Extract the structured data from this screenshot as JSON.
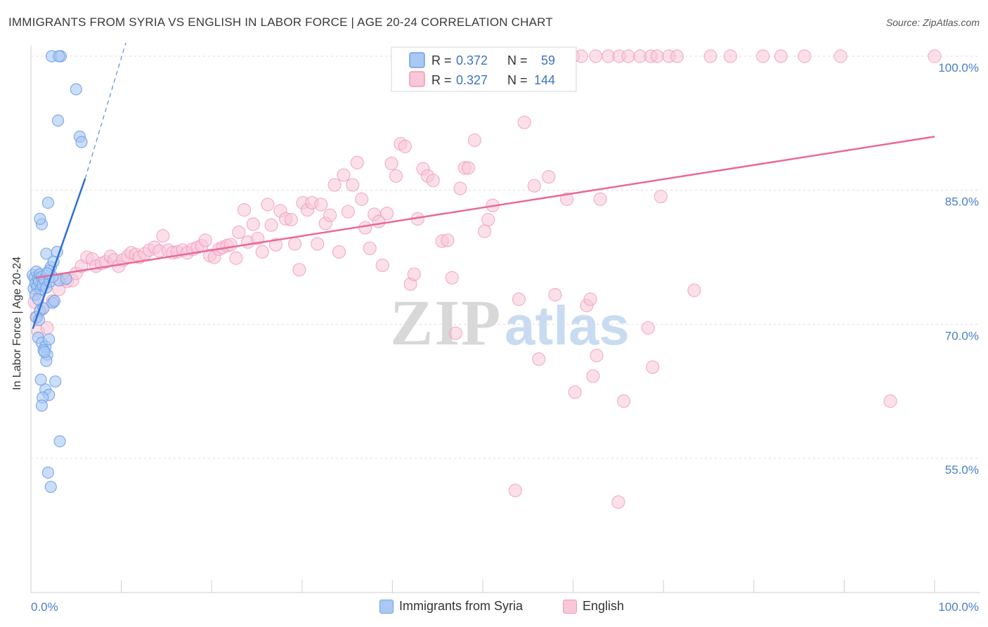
{
  "header": {
    "title": "IMMIGRANTS FROM SYRIA VS ENGLISH IN LABOR FORCE | AGE 20-24 CORRELATION CHART",
    "source": "Source: ZipAtlas.com"
  },
  "watermark": {
    "zip": "ZIP",
    "atlas": "atlas"
  },
  "chart_data": {
    "type": "scatter",
    "xlabel": "",
    "ylabel": "In Labor Force | Age 20-24",
    "x_range": [
      0,
      100
    ],
    "y_range": [
      41,
      102
    ],
    "x_ticks": [
      {
        "value": 0,
        "label": "0.0%"
      },
      {
        "value": 100,
        "label": "100.0%"
      }
    ],
    "y_ticks": [
      {
        "value": 100,
        "label": "100.0%"
      },
      {
        "value": 85,
        "label": "85.0%"
      },
      {
        "value": 70,
        "label": "70.0%"
      },
      {
        "value": 55,
        "label": "55.0%"
      }
    ],
    "grid": "horizontal-dashed",
    "legend_placement": "top-center",
    "legend": [
      {
        "r_label": "R =",
        "r_value": "0.372",
        "n_label": "N =",
        "n_value": "59"
      },
      {
        "r_label": "R =",
        "r_value": "0.327",
        "n_label": "N =",
        "n_value": "144"
      }
    ],
    "series": [
      {
        "name": "Immigrants from Syria",
        "color": "#6fa0e8",
        "fill": "#a9c8f3",
        "trend_color": "#2d6fd1",
        "trend": {
          "x0": 0.2,
          "y0": 69.5,
          "x1": 6.0,
          "y1": 86.3,
          "dash_to": {
            "x": 10.5,
            "y": 101.5
          }
        },
        "points": [
          [
            0.2,
            75.5
          ],
          [
            0.3,
            74.0
          ],
          [
            0.4,
            75.2
          ],
          [
            0.5,
            74.6
          ],
          [
            0.6,
            75.9
          ],
          [
            0.7,
            74.2
          ],
          [
            0.8,
            75.1
          ],
          [
            0.9,
            74.8
          ],
          [
            1.0,
            75.6
          ],
          [
            1.1,
            73.9
          ],
          [
            1.2,
            75.3
          ],
          [
            0.5,
            73.3
          ],
          [
            0.8,
            72.8
          ],
          [
            1.3,
            74.4
          ],
          [
            1.5,
            75.0
          ],
          [
            1.7,
            74.1
          ],
          [
            0.6,
            70.8
          ],
          [
            1.0,
            71.5
          ],
          [
            1.4,
            71.8
          ],
          [
            0.9,
            70.5
          ],
          [
            0.8,
            68.5
          ],
          [
            1.2,
            67.9
          ],
          [
            1.6,
            67.5
          ],
          [
            1.8,
            66.6
          ],
          [
            1.7,
            65.9
          ],
          [
            1.4,
            67.1
          ],
          [
            2.0,
            68.3
          ],
          [
            1.5,
            66.9
          ],
          [
            1.1,
            63.8
          ],
          [
            1.6,
            62.7
          ],
          [
            2.0,
            62.1
          ],
          [
            1.3,
            61.8
          ],
          [
            1.2,
            60.9
          ],
          [
            2.7,
            63.6
          ],
          [
            3.2,
            56.9
          ],
          [
            1.9,
            53.4
          ],
          [
            2.2,
            51.8
          ],
          [
            1.2,
            81.2
          ],
          [
            1.9,
            83.6
          ],
          [
            1.0,
            81.8
          ],
          [
            1.7,
            77.9
          ],
          [
            2.9,
            78.1
          ],
          [
            2.2,
            76.4
          ],
          [
            2.5,
            77.0
          ],
          [
            2.4,
            72.4
          ],
          [
            2.6,
            72.6
          ],
          [
            2.1,
            74.8
          ],
          [
            3.1,
            74.9
          ],
          [
            3.9,
            75.1
          ],
          [
            2.4,
            75.3
          ],
          [
            5.0,
            96.3
          ],
          [
            3.0,
            92.8
          ],
          [
            5.4,
            91.0
          ],
          [
            5.6,
            90.4
          ],
          [
            2.3,
            100.0
          ],
          [
            3.3,
            100.0
          ],
          [
            3.1,
            100.0
          ],
          [
            2.0,
            76.0
          ],
          [
            1.8,
            75.7
          ]
        ]
      },
      {
        "name": "English",
        "color": "#f19ab8",
        "fill": "#f8c7d8",
        "trend_color": "#e86a96",
        "trend": {
          "x0": 0.5,
          "y0": 75.2,
          "x1": 100,
          "y1": 91.0
        },
        "points": [
          [
            0.4,
            72.5
          ],
          [
            0.6,
            70.8
          ],
          [
            0.8,
            69.2
          ],
          [
            1.0,
            73.9
          ],
          [
            1.2,
            71.7
          ],
          [
            1.6,
            74.6
          ],
          [
            1.8,
            69.6
          ],
          [
            2.4,
            72.6
          ],
          [
            3.1,
            73.9
          ],
          [
            3.7,
            75.0
          ],
          [
            4.0,
            74.8
          ],
          [
            4.6,
            74.9
          ],
          [
            5.0,
            75.7
          ],
          [
            5.6,
            76.5
          ],
          [
            6.2,
            77.5
          ],
          [
            6.8,
            77.3
          ],
          [
            7.2,
            76.5
          ],
          [
            7.8,
            76.8
          ],
          [
            8.3,
            77.0
          ],
          [
            8.8,
            77.6
          ],
          [
            9.2,
            77.2
          ],
          [
            9.7,
            76.5
          ],
          [
            10.2,
            77.2
          ],
          [
            10.7,
            77.6
          ],
          [
            11.1,
            78.0
          ],
          [
            11.6,
            77.8
          ],
          [
            12.0,
            77.5
          ],
          [
            12.6,
            77.9
          ],
          [
            13.1,
            78.3
          ],
          [
            13.7,
            78.6
          ],
          [
            14.2,
            78.2
          ],
          [
            14.6,
            79.9
          ],
          [
            15.2,
            78.3
          ],
          [
            15.7,
            78.0
          ],
          [
            16.2,
            78.1
          ],
          [
            16.8,
            78.3
          ],
          [
            17.3,
            78.0
          ],
          [
            17.9,
            78.4
          ],
          [
            18.4,
            78.6
          ],
          [
            18.9,
            78.8
          ],
          [
            19.3,
            79.4
          ],
          [
            19.8,
            77.7
          ],
          [
            20.3,
            77.5
          ],
          [
            20.8,
            78.4
          ],
          [
            21.2,
            78.6
          ],
          [
            21.7,
            78.8
          ],
          [
            22.1,
            78.9
          ],
          [
            22.7,
            77.4
          ],
          [
            23.0,
            80.3
          ],
          [
            23.6,
            82.8
          ],
          [
            24.0,
            79.2
          ],
          [
            24.6,
            81.2
          ],
          [
            25.1,
            79.6
          ],
          [
            25.6,
            78.1
          ],
          [
            26.2,
            83.4
          ],
          [
            26.6,
            81.1
          ],
          [
            27.1,
            78.9
          ],
          [
            27.6,
            82.7
          ],
          [
            28.2,
            81.8
          ],
          [
            28.8,
            81.7
          ],
          [
            29.2,
            79.0
          ],
          [
            29.7,
            76.1
          ],
          [
            30.1,
            83.6
          ],
          [
            30.6,
            82.8
          ],
          [
            31.1,
            83.6
          ],
          [
            31.7,
            79.0
          ],
          [
            32.1,
            83.4
          ],
          [
            32.6,
            81.3
          ],
          [
            33.1,
            82.2
          ],
          [
            33.6,
            85.6
          ],
          [
            34.1,
            78.1
          ],
          [
            34.6,
            86.7
          ],
          [
            35.1,
            82.6
          ],
          [
            35.6,
            85.6
          ],
          [
            36.1,
            88.1
          ],
          [
            36.6,
            84.0
          ],
          [
            37.0,
            80.8
          ],
          [
            37.5,
            78.5
          ],
          [
            38.0,
            82.3
          ],
          [
            38.5,
            81.5
          ],
          [
            38.9,
            76.6
          ],
          [
            39.4,
            82.4
          ],
          [
            39.9,
            88.0
          ],
          [
            40.4,
            86.6
          ],
          [
            40.9,
            90.2
          ],
          [
            41.4,
            89.9
          ],
          [
            42.0,
            74.5
          ],
          [
            42.4,
            75.6
          ],
          [
            42.8,
            81.8
          ],
          [
            43.4,
            87.4
          ],
          [
            43.9,
            86.6
          ],
          [
            44.5,
            86.1
          ],
          [
            45.5,
            79.3
          ],
          [
            46.1,
            79.4
          ],
          [
            46.6,
            75.2
          ],
          [
            47.0,
            69.0
          ],
          [
            47.5,
            85.2
          ],
          [
            48.0,
            87.5
          ],
          [
            48.4,
            87.5
          ],
          [
            49.1,
            90.6
          ],
          [
            50.2,
            80.4
          ],
          [
            50.6,
            81.7
          ],
          [
            51.1,
            83.3
          ],
          [
            53.6,
            51.4
          ],
          [
            54.0,
            72.8
          ],
          [
            54.6,
            92.6
          ],
          [
            55.7,
            85.5
          ],
          [
            56.2,
            66.1
          ],
          [
            57.3,
            86.5
          ],
          [
            58.0,
            73.3
          ],
          [
            59.3,
            84.0
          ],
          [
            60.2,
            62.4
          ],
          [
            61.5,
            72.1
          ],
          [
            61.9,
            72.8
          ],
          [
            62.2,
            64.2
          ],
          [
            62.6,
            66.5
          ],
          [
            63.0,
            84.0
          ],
          [
            65.0,
            50.1
          ],
          [
            65.6,
            61.4
          ],
          [
            68.3,
            69.6
          ],
          [
            68.8,
            65.2
          ],
          [
            69.7,
            84.3
          ],
          [
            73.4,
            73.8
          ],
          [
            95.1,
            61.4
          ],
          [
            100.0,
            100.0
          ]
        ],
        "top_row": [
          [
            52.1,
            100
          ],
          [
            53.0,
            100
          ],
          [
            54.2,
            100
          ],
          [
            55.0,
            100
          ],
          [
            55.9,
            100
          ],
          [
            56.6,
            100
          ],
          [
            57.5,
            100
          ],
          [
            58.6,
            100
          ],
          [
            60.0,
            100
          ],
          [
            60.9,
            100
          ],
          [
            62.5,
            100
          ],
          [
            63.9,
            100
          ],
          [
            65.1,
            100
          ],
          [
            66.1,
            100
          ],
          [
            67.4,
            100
          ],
          [
            68.6,
            100
          ],
          [
            69.3,
            100
          ],
          [
            70.6,
            100
          ],
          [
            71.5,
            100
          ],
          [
            75.2,
            100
          ],
          [
            77.4,
            100
          ],
          [
            81.0,
            100
          ],
          [
            83.0,
            100
          ],
          [
            85.6,
            100
          ],
          [
            89.6,
            100
          ]
        ]
      }
    ]
  },
  "bottom_legend": [
    {
      "label": "Immigrants from Syria"
    },
    {
      "label": "English"
    }
  ]
}
